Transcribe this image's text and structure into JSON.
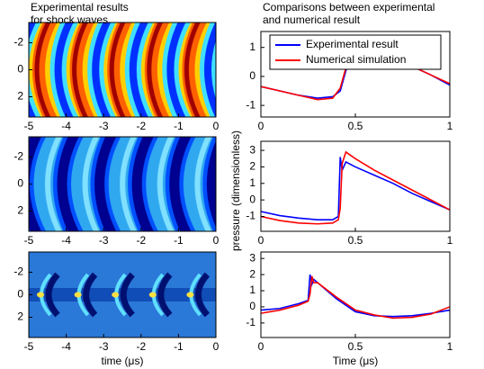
{
  "chart_data": [
    {
      "type": "heatmap",
      "title": [
        "Experimental results",
        "for shock waves"
      ],
      "xlim": [
        -5,
        0
      ],
      "xticks": [
        -5,
        -4,
        -3,
        -2,
        -1,
        0
      ],
      "ylim": [
        -3.5,
        3.5
      ],
      "yticks": [
        -2,
        0,
        2
      ],
      "y_inverted": true
    },
    {
      "type": "heatmap",
      "xlim": [
        -5,
        0
      ],
      "xticks": [
        -5,
        -4,
        -3,
        -2,
        -1,
        0
      ],
      "ylim": [
        -3.5,
        3.5
      ],
      "yticks": [
        -2,
        0,
        2
      ],
      "y_inverted": true
    },
    {
      "type": "heatmap",
      "xlabel": "time (μs)",
      "xlim": [
        -5,
        0
      ],
      "xticks": [
        -5,
        -4,
        -3,
        -2,
        -1,
        0
      ],
      "ylim": [
        -3.8,
        3.8
      ],
      "yticks": [
        -2,
        0,
        2
      ],
      "y_inverted": true
    },
    {
      "type": "line",
      "title": [
        "Comparisons between experimental",
        "and numerical result"
      ],
      "legend": true,
      "x": [
        0,
        0.1,
        0.2,
        0.3,
        0.38,
        0.42,
        0.45,
        0.48,
        0.52,
        0.6,
        0.7,
        0.8,
        0.9,
        1
      ],
      "series": [
        {
          "name": "Experimental result",
          "color": "#0000ff",
          "values": [
            -0.35,
            -0.5,
            -0.65,
            -0.75,
            -0.7,
            -0.5,
            0.2,
            0.7,
            0.9,
            0.85,
            0.6,
            0.35,
            0.05,
            -0.3
          ]
        },
        {
          "name": "Numerical simulation",
          "color": "#ff0000",
          "values": [
            -0.35,
            -0.5,
            -0.65,
            -0.8,
            -0.75,
            -0.4,
            0.3,
            0.75,
            0.95,
            0.85,
            0.6,
            0.35,
            0.05,
            -0.25
          ]
        }
      ],
      "xlim": [
        0,
        1
      ],
      "xticks": [
        0,
        0.5,
        1
      ],
      "ylim": [
        -1.4,
        1.55
      ],
      "yticks": [
        -1,
        0,
        1
      ]
    },
    {
      "type": "line",
      "ylabel": "pressure (dimensionless)",
      "x": [
        0,
        0.1,
        0.2,
        0.3,
        0.38,
        0.41,
        0.42,
        0.43,
        0.45,
        0.5,
        0.6,
        0.7,
        0.8,
        0.9,
        1
      ],
      "series": [
        {
          "color": "#0000ff",
          "values": [
            -0.7,
            -0.95,
            -1.1,
            -1.2,
            -1.2,
            -1.0,
            2.6,
            1.8,
            2.3,
            2.0,
            1.5,
            1.0,
            0.4,
            -0.1,
            -0.6
          ]
        },
        {
          "color": "#ff0000",
          "values": [
            -1.0,
            -1.25,
            -1.4,
            -1.45,
            -1.4,
            -1.2,
            -0.5,
            2.2,
            2.9,
            2.5,
            1.8,
            1.2,
            0.6,
            0.0,
            -0.6
          ]
        }
      ],
      "xlim": [
        0,
        1
      ],
      "xticks": [
        0,
        0.5,
        1
      ],
      "ylim": [
        -1.9,
        3.55
      ],
      "yticks": [
        -1,
        0,
        1,
        2,
        3
      ]
    },
    {
      "type": "line",
      "xlabel": "Time (μs)",
      "x": [
        0,
        0.1,
        0.2,
        0.25,
        0.26,
        0.27,
        0.28,
        0.3,
        0.4,
        0.5,
        0.6,
        0.7,
        0.8,
        0.9,
        1
      ],
      "series": [
        {
          "color": "#0000ff",
          "values": [
            -0.2,
            -0.1,
            0.2,
            0.4,
            2.0,
            1.4,
            1.7,
            1.5,
            0.5,
            -0.3,
            -0.55,
            -0.6,
            -0.55,
            -0.4,
            -0.2
          ]
        },
        {
          "color": "#ff0000",
          "values": [
            -0.4,
            -0.2,
            0.1,
            0.35,
            0.8,
            1.9,
            1.5,
            1.5,
            0.6,
            -0.2,
            -0.5,
            -0.7,
            -0.65,
            -0.45,
            0.0
          ]
        }
      ],
      "xlim": [
        0,
        1
      ],
      "xticks": [
        0,
        0.5,
        1
      ],
      "ylim": [
        -1.9,
        3.4
      ],
      "yticks": [
        -1,
        0,
        1,
        2,
        3
      ]
    }
  ]
}
